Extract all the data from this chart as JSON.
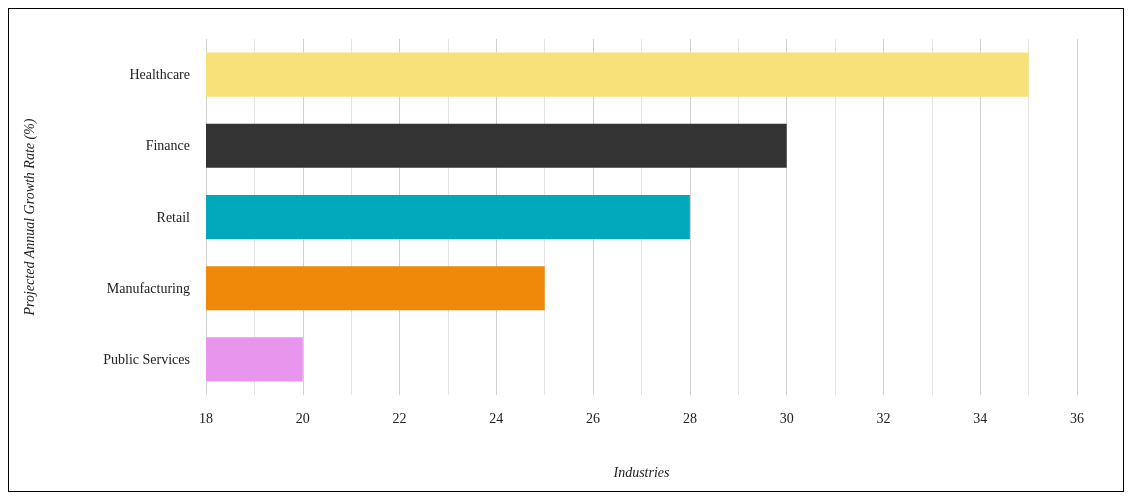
{
  "chart_data": {
    "type": "bar",
    "orientation": "horizontal",
    "xlabel": "Industries",
    "ylabel": "Projected Annual Growth Rate (%)",
    "categories": [
      "Healthcare",
      "Finance",
      "Retail",
      "Manufacturing",
      "Public Services"
    ],
    "values": [
      35,
      30,
      28,
      25,
      20
    ],
    "colors": [
      "#f9e17a",
      "#333333",
      "#00a9bb",
      "#f0880a",
      "#e895ee"
    ],
    "xlim": [
      18,
      36
    ],
    "xticks": [
      18,
      20,
      22,
      24,
      26,
      28,
      30,
      32,
      34,
      36
    ],
    "grid": "x"
  }
}
